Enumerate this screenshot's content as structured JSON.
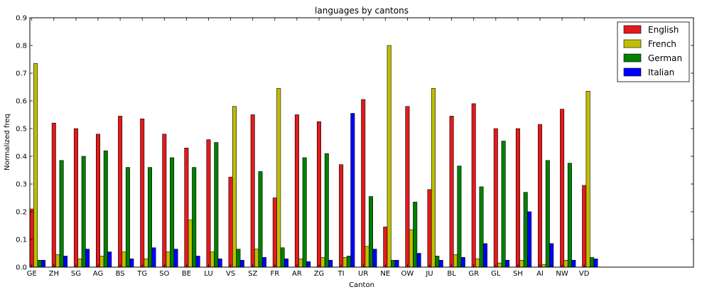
{
  "chart_data": {
    "type": "bar",
    "title": "languages by cantons",
    "xlabel": "Canton",
    "ylabel": "Normalized freq",
    "ylim": [
      0,
      0.9
    ],
    "yticks": [
      "0.0",
      "0.1",
      "0.2",
      "0.3",
      "0.4",
      "0.5",
      "0.6",
      "0.7",
      "0.8",
      "0.9"
    ],
    "grid": false,
    "legend_position": "top-right",
    "categories": [
      "GE",
      "ZH",
      "SG",
      "AG",
      "BS",
      "TG",
      "SO",
      "BE",
      "LU",
      "VS",
      "SZ",
      "FR",
      "AR",
      "ZG",
      "TI",
      "UR",
      "NE",
      "OW",
      "JU",
      "BL",
      "GR",
      "GL",
      "SH",
      "AI",
      "NW",
      "VD"
    ],
    "series": [
      {
        "name": "English",
        "color": "#e31a1c",
        "values": [
          0.21,
          0.52,
          0.5,
          0.48,
          0.545,
          0.535,
          0.48,
          0.43,
          0.46,
          0.325,
          0.55,
          0.25,
          0.55,
          0.525,
          0.37,
          0.605,
          0.145,
          0.58,
          0.28,
          0.545,
          0.59,
          0.5,
          0.5,
          0.515,
          0.57,
          0.295
        ]
      },
      {
        "name": "French",
        "color": "#bfbf00",
        "values": [
          0.735,
          0.045,
          0.03,
          0.04,
          0.055,
          0.03,
          0.055,
          0.17,
          0.055,
          0.58,
          0.065,
          0.645,
          0.03,
          0.035,
          0.035,
          0.075,
          0.8,
          0.135,
          0.645,
          0.045,
          0.03,
          0.015,
          0.025,
          0.01,
          0.025,
          0.635
        ]
      },
      {
        "name": "German",
        "color": "#008000",
        "values": [
          0.025,
          0.385,
          0.4,
          0.42,
          0.36,
          0.36,
          0.395,
          0.36,
          0.45,
          0.065,
          0.345,
          0.07,
          0.395,
          0.41,
          0.04,
          0.255,
          0.025,
          0.235,
          0.04,
          0.365,
          0.29,
          0.455,
          0.27,
          0.385,
          0.375,
          0.035
        ]
      },
      {
        "name": "Italian",
        "color": "#0000ff",
        "values": [
          0.025,
          0.04,
          0.065,
          0.055,
          0.03,
          0.07,
          0.065,
          0.04,
          0.03,
          0.025,
          0.035,
          0.03,
          0.02,
          0.025,
          0.555,
          0.065,
          0.025,
          0.05,
          0.025,
          0.035,
          0.085,
          0.025,
          0.2,
          0.085,
          0.025,
          0.03
        ]
      }
    ]
  }
}
